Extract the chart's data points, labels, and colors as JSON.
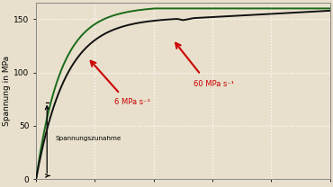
{
  "ylabel": "Spannung in MPa",
  "xlim": [
    0,
    1.0
  ],
  "ylim": [
    0,
    165
  ],
  "yticks": [
    0,
    50,
    100,
    150
  ],
  "background_color": "#e8e0cc",
  "grid_color": "#ffffff",
  "curve_color_dark": "#111111",
  "curve_color_green": "#1a6b1a",
  "label_6mpa": "6 MPa s⁻¹",
  "label_60mpa": "60 MPa s⁻¹",
  "label_spannungs": "Spannungszunahme",
  "arrow_color": "#cc0000"
}
